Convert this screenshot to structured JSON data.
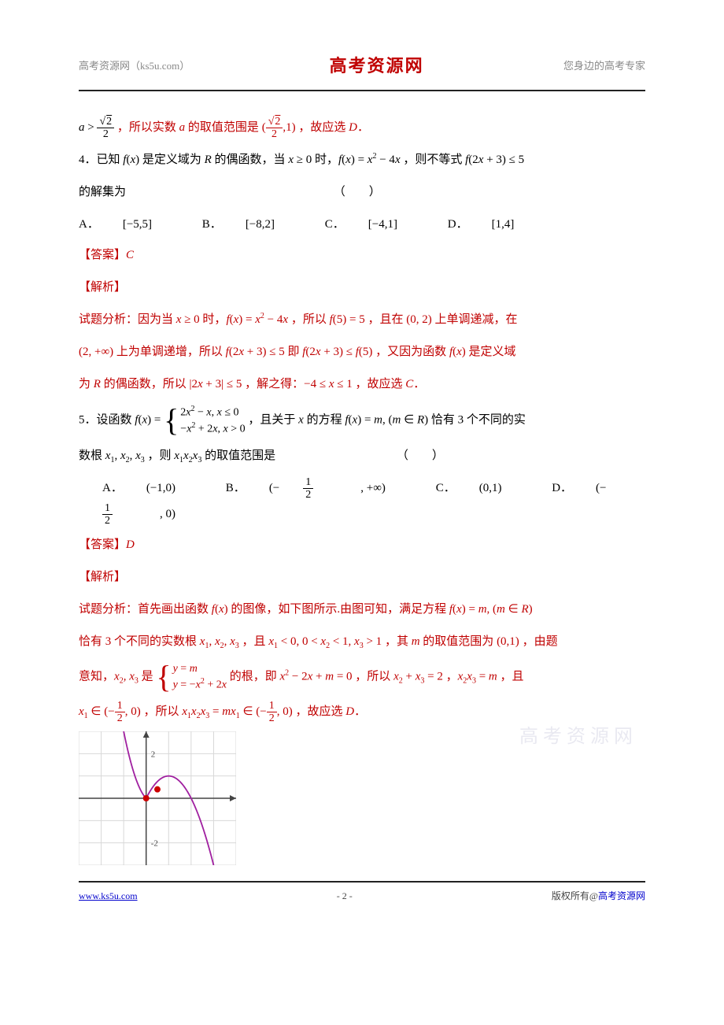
{
  "header": {
    "left": "高考资源网（ks5u.com）",
    "center": "高考资源网",
    "right": "您身边的高考专家"
  },
  "watermark": "高考资源网",
  "content": {
    "prelude": {
      "text1": "，所以实数 ",
      "text2": " 的取值范围是 ",
      "text3": "，故应选 ",
      "choice": "D",
      "period": "．"
    },
    "q4": {
      "stem1": "4．已知 ",
      "stem2": " 是定义域为 ",
      "stem3": " 的偶函数，当 ",
      "stem4": " 时，",
      "stem5": "，则不等式 ",
      "stem6": "的解集为",
      "paren": "（　　）",
      "optA": "A．",
      "optAval": "[−5,5]",
      "optB": "B．",
      "optBval": "[−8,2]",
      "optC": "C．",
      "optCval": "[−4,1]",
      "optD": "D．",
      "optDval": "[1,4]",
      "ansLabel": "【答案】",
      "ansVal": "C",
      "expLabel": "【解析】",
      "exp1a": "试题分析：因为当 ",
      "exp1b": " 时，",
      "exp1c": "，所以 ",
      "exp1d": "，且在 ",
      "exp1e": " 上单调递减，在",
      "exp2a": " 上为单调递增，所以 ",
      "exp2b": " 即 ",
      "exp2c": "，又因为函数 ",
      "exp2d": " 是定义域",
      "exp3a": "为 ",
      "exp3b": " 的偶函数，所以 ",
      "exp3c": "，解之得：",
      "exp3d": "，故应选 ",
      "exp3choice": "C",
      "exp3period": "．"
    },
    "q5": {
      "stem1": "5．设函数 ",
      "stem2": "，且关于 ",
      "stem3": " 的方程 ",
      "stem4": " 恰有 ",
      "stem5": " 个不同的实",
      "stem6": "数根 ",
      "stem7": "，则 ",
      "stem8": " 的取值范围是",
      "paren": "（　　）",
      "optA": "A．",
      "optAval": "(−1,0)",
      "optB": "B．",
      "optC": "C．",
      "optCval": "(0,1)",
      "optD": "D．",
      "ansLabel": "【答案】",
      "ansVal": "D",
      "expLabel": "【解析】",
      "e1a": "试题分析：首先画出函数 ",
      "e1b": " 的图像，如下图所示.由图可知，满足方程 ",
      "e2a": "恰有 ",
      "e2b": " 个不同的实数根 ",
      "e2c": "，且 ",
      "e2d": "，其 ",
      "e2e": " 的取值范围为 ",
      "e2f": "，由题",
      "e3a": "意知，",
      "e3b": " 是 ",
      "e3c": " 的根，即 ",
      "e3d": "，所以 ",
      "e3e": "，",
      "e3f": "，且",
      "e4a": "，所以 ",
      "e4b": "，故应选 ",
      "e4choice": "D",
      "e4period": "．"
    }
  },
  "graph": {
    "gridColor": "#d8d8d8",
    "axisColor": "#444",
    "curveColor": "#a020a0",
    "dotColor": "#cc0000",
    "yTickLabels": [
      "2",
      "-2"
    ],
    "xmin": -3,
    "xmax": 4,
    "ymin": -3,
    "ymax": 3
  },
  "footer": {
    "left": "www.ks5u.com",
    "center": "- 2 -",
    "rightPrefix": "版权所有",
    "rightAt": "@",
    "rightSuffix": "高考资源网"
  }
}
